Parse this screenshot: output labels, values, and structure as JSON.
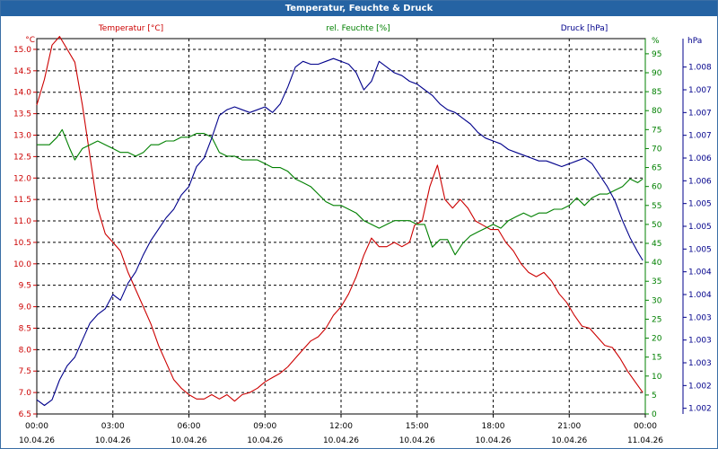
{
  "window": {
    "title": "Temperatur, Feuchte & Druck"
  },
  "chart_data": {
    "type": "line",
    "title": "Temperatur, Feuchte & Druck",
    "x_labels": [
      {
        "time": "00:00",
        "date": "10.04.26"
      },
      {
        "time": "03:00",
        "date": "10.04.26"
      },
      {
        "time": "06:00",
        "date": "10.04.26"
      },
      {
        "time": "09:00",
        "date": "10.04.26"
      },
      {
        "time": "12:00",
        "date": "10.04.26"
      },
      {
        "time": "15:00",
        "date": "10.04.26"
      },
      {
        "time": "18:00",
        "date": "10.04.26"
      },
      {
        "time": "21:00",
        "date": "10.04.26"
      },
      {
        "time": "00:00",
        "date": "11.04.26"
      }
    ],
    "xlim": [
      0,
      24
    ],
    "axes": {
      "temperature": {
        "label": "Temperatur [°C]",
        "unit": "°C",
        "color": "#cc0000",
        "ylim": [
          6.5,
          15.25
        ],
        "ticks": [
          "6.5",
          "7.0",
          "7.5",
          "8.0",
          "8.5",
          "9.0",
          "9.5",
          "10.0",
          "10.5",
          "11.0",
          "11.5",
          "12.0",
          "12.5",
          "13.0",
          "13.5",
          "14.0",
          "14.5",
          "15.0"
        ]
      },
      "humidity": {
        "label": "rel. Feuchte [%]",
        "unit": "%",
        "color": "#008000",
        "ylim": [
          0,
          99
        ],
        "ticks": [
          "0",
          "5",
          "10",
          "15",
          "20",
          "25",
          "30",
          "35",
          "40",
          "45",
          "50",
          "55",
          "60",
          "65",
          "70",
          "75",
          "80",
          "85",
          "90",
          "95"
        ]
      },
      "pressure": {
        "label": "Druck [hPa]",
        "unit": "hPa",
        "color": "#00008b",
        "ylim": [
          1001.6,
          1008.2
        ],
        "ticks": [
          {
            "v": 1001.7,
            "label": "1.002"
          },
          {
            "v": 1002.1,
            "label": "1.002"
          },
          {
            "v": 1002.5,
            "label": "1.003"
          },
          {
            "v": 1002.9,
            "label": "1.003"
          },
          {
            "v": 1003.3,
            "label": "1.003"
          },
          {
            "v": 1003.7,
            "label": "1.004"
          },
          {
            "v": 1004.1,
            "label": "1.004"
          },
          {
            "v": 1004.5,
            "label": "1.005"
          },
          {
            "v": 1004.9,
            "label": "1.005"
          },
          {
            "v": 1005.3,
            "label": "1.005"
          },
          {
            "v": 1005.7,
            "label": "1.006"
          },
          {
            "v": 1006.1,
            "label": "1.006"
          },
          {
            "v": 1006.5,
            "label": "1.007"
          },
          {
            "v": 1006.9,
            "label": "1.007"
          },
          {
            "v": 1007.3,
            "label": "1.007"
          },
          {
            "v": 1007.7,
            "label": "1.008"
          }
        ]
      }
    },
    "series": [
      {
        "name": "Temperatur [°C]",
        "axis": "temperature",
        "color": "#cc0000",
        "points": [
          [
            0,
            13.7
          ],
          [
            0.3,
            14.3
          ],
          [
            0.6,
            15.1
          ],
          [
            0.9,
            15.3
          ],
          [
            1.2,
            15.0
          ],
          [
            1.5,
            14.7
          ],
          [
            1.8,
            13.7
          ],
          [
            2.1,
            12.5
          ],
          [
            2.4,
            11.3
          ],
          [
            2.7,
            10.7
          ],
          [
            3.0,
            10.5
          ],
          [
            3.3,
            10.3
          ],
          [
            3.6,
            9.8
          ],
          [
            3.9,
            9.4
          ],
          [
            4.2,
            9.0
          ],
          [
            4.5,
            8.6
          ],
          [
            4.8,
            8.1
          ],
          [
            5.1,
            7.7
          ],
          [
            5.4,
            7.3
          ],
          [
            5.7,
            7.1
          ],
          [
            6.0,
            6.95
          ],
          [
            6.3,
            6.85
          ],
          [
            6.6,
            6.85
          ],
          [
            6.9,
            6.95
          ],
          [
            7.2,
            6.85
          ],
          [
            7.5,
            6.95
          ],
          [
            7.8,
            6.8
          ],
          [
            8.1,
            6.95
          ],
          [
            8.4,
            7.0
          ],
          [
            8.7,
            7.1
          ],
          [
            9.0,
            7.25
          ],
          [
            9.3,
            7.35
          ],
          [
            9.6,
            7.45
          ],
          [
            9.9,
            7.6
          ],
          [
            10.2,
            7.8
          ],
          [
            10.5,
            8.0
          ],
          [
            10.8,
            8.2
          ],
          [
            11.1,
            8.3
          ],
          [
            11.4,
            8.5
          ],
          [
            11.7,
            8.8
          ],
          [
            12.0,
            9.0
          ],
          [
            12.3,
            9.3
          ],
          [
            12.6,
            9.7
          ],
          [
            12.9,
            10.2
          ],
          [
            13.2,
            10.6
          ],
          [
            13.5,
            10.4
          ],
          [
            13.8,
            10.4
          ],
          [
            14.1,
            10.5
          ],
          [
            14.4,
            10.4
          ],
          [
            14.7,
            10.5
          ],
          [
            14.9,
            10.9
          ],
          [
            15.2,
            11.0
          ],
          [
            15.5,
            11.8
          ],
          [
            15.8,
            12.3
          ],
          [
            16.1,
            11.5
          ],
          [
            16.4,
            11.3
          ],
          [
            16.7,
            11.5
          ],
          [
            17.0,
            11.3
          ],
          [
            17.3,
            11.0
          ],
          [
            17.6,
            10.9
          ],
          [
            17.9,
            10.8
          ],
          [
            18.2,
            10.8
          ],
          [
            18.5,
            10.5
          ],
          [
            18.8,
            10.3
          ],
          [
            19.1,
            10.0
          ],
          [
            19.4,
            9.8
          ],
          [
            19.7,
            9.7
          ],
          [
            20.0,
            9.8
          ],
          [
            20.3,
            9.6
          ],
          [
            20.6,
            9.3
          ],
          [
            20.9,
            9.1
          ],
          [
            21.2,
            8.8
          ],
          [
            21.5,
            8.55
          ],
          [
            21.8,
            8.5
          ],
          [
            22.1,
            8.3
          ],
          [
            22.4,
            8.1
          ],
          [
            22.7,
            8.05
          ],
          [
            23.0,
            7.8
          ],
          [
            23.3,
            7.5
          ],
          [
            23.6,
            7.25
          ],
          [
            23.9,
            7.0
          ]
        ]
      },
      {
        "name": "rel. Feuchte [%]",
        "axis": "humidity",
        "color": "#008000",
        "points": [
          [
            0,
            71
          ],
          [
            0.5,
            71
          ],
          [
            0.8,
            73
          ],
          [
            1.0,
            75
          ],
          [
            1.3,
            70
          ],
          [
            1.5,
            67
          ],
          [
            1.8,
            70
          ],
          [
            2.1,
            71
          ],
          [
            2.4,
            72
          ],
          [
            2.7,
            71
          ],
          [
            3.0,
            70
          ],
          [
            3.3,
            69
          ],
          [
            3.6,
            69
          ],
          [
            3.9,
            68
          ],
          [
            4.2,
            69
          ],
          [
            4.5,
            71
          ],
          [
            4.8,
            71
          ],
          [
            5.1,
            72
          ],
          [
            5.4,
            72
          ],
          [
            5.7,
            73
          ],
          [
            6.0,
            73
          ],
          [
            6.3,
            74
          ],
          [
            6.6,
            74
          ],
          [
            6.9,
            73
          ],
          [
            7.2,
            69
          ],
          [
            7.5,
            68
          ],
          [
            7.8,
            68
          ],
          [
            8.1,
            67
          ],
          [
            8.4,
            67
          ],
          [
            8.7,
            67
          ],
          [
            9.0,
            66
          ],
          [
            9.3,
            65
          ],
          [
            9.6,
            65
          ],
          [
            9.9,
            64
          ],
          [
            10.2,
            62
          ],
          [
            10.5,
            61
          ],
          [
            10.8,
            60
          ],
          [
            11.1,
            58
          ],
          [
            11.4,
            56
          ],
          [
            11.7,
            55
          ],
          [
            12.0,
            55
          ],
          [
            12.3,
            54
          ],
          [
            12.6,
            53
          ],
          [
            12.9,
            51
          ],
          [
            13.2,
            50
          ],
          [
            13.5,
            49
          ],
          [
            13.8,
            50
          ],
          [
            14.1,
            51
          ],
          [
            14.4,
            51
          ],
          [
            14.7,
            51
          ],
          [
            15.0,
            50
          ],
          [
            15.3,
            50
          ],
          [
            15.6,
            44
          ],
          [
            15.9,
            46
          ],
          [
            16.2,
            46
          ],
          [
            16.5,
            42
          ],
          [
            16.8,
            45
          ],
          [
            17.1,
            47
          ],
          [
            17.4,
            48
          ],
          [
            17.7,
            49
          ],
          [
            18.0,
            50
          ],
          [
            18.3,
            49
          ],
          [
            18.6,
            51
          ],
          [
            18.9,
            52
          ],
          [
            19.2,
            53
          ],
          [
            19.5,
            52
          ],
          [
            19.8,
            53
          ],
          [
            20.1,
            53
          ],
          [
            20.4,
            54
          ],
          [
            20.7,
            54
          ],
          [
            21.0,
            55
          ],
          [
            21.3,
            57
          ],
          [
            21.6,
            55
          ],
          [
            21.9,
            57
          ],
          [
            22.2,
            58
          ],
          [
            22.5,
            58
          ],
          [
            22.8,
            59
          ],
          [
            23.1,
            60
          ],
          [
            23.4,
            62
          ],
          [
            23.7,
            61
          ],
          [
            23.9,
            62
          ]
        ]
      },
      {
        "name": "Druck [hPa]",
        "axis": "pressure",
        "color": "#00008b",
        "points": [
          [
            0,
            1001.85
          ],
          [
            0.3,
            1001.75
          ],
          [
            0.6,
            1001.85
          ],
          [
            0.9,
            1002.2
          ],
          [
            1.2,
            1002.45
          ],
          [
            1.5,
            1002.6
          ],
          [
            1.8,
            1002.9
          ],
          [
            2.1,
            1003.2
          ],
          [
            2.4,
            1003.35
          ],
          [
            2.7,
            1003.45
          ],
          [
            3.0,
            1003.7
          ],
          [
            3.3,
            1003.6
          ],
          [
            3.6,
            1003.9
          ],
          [
            3.9,
            1004.1
          ],
          [
            4.2,
            1004.4
          ],
          [
            4.5,
            1004.65
          ],
          [
            4.8,
            1004.85
          ],
          [
            5.1,
            1005.05
          ],
          [
            5.4,
            1005.2
          ],
          [
            5.7,
            1005.45
          ],
          [
            6.0,
            1005.6
          ],
          [
            6.3,
            1005.95
          ],
          [
            6.6,
            1006.1
          ],
          [
            6.9,
            1006.45
          ],
          [
            7.2,
            1006.85
          ],
          [
            7.5,
            1006.95
          ],
          [
            7.8,
            1007.0
          ],
          [
            8.1,
            1006.95
          ],
          [
            8.4,
            1006.9
          ],
          [
            8.7,
            1006.95
          ],
          [
            9.0,
            1007.0
          ],
          [
            9.3,
            1006.9
          ],
          [
            9.6,
            1007.05
          ],
          [
            9.9,
            1007.35
          ],
          [
            10.2,
            1007.7
          ],
          [
            10.5,
            1007.8
          ],
          [
            10.8,
            1007.75
          ],
          [
            11.1,
            1007.75
          ],
          [
            11.4,
            1007.8
          ],
          [
            11.7,
            1007.85
          ],
          [
            12.0,
            1007.8
          ],
          [
            12.3,
            1007.75
          ],
          [
            12.6,
            1007.6
          ],
          [
            12.9,
            1007.3
          ],
          [
            13.2,
            1007.45
          ],
          [
            13.5,
            1007.8
          ],
          [
            13.8,
            1007.7
          ],
          [
            14.1,
            1007.6
          ],
          [
            14.4,
            1007.55
          ],
          [
            14.7,
            1007.45
          ],
          [
            15.0,
            1007.4
          ],
          [
            15.3,
            1007.3
          ],
          [
            15.6,
            1007.2
          ],
          [
            15.9,
            1007.05
          ],
          [
            16.2,
            1006.95
          ],
          [
            16.5,
            1006.9
          ],
          [
            16.8,
            1006.8
          ],
          [
            17.1,
            1006.7
          ],
          [
            17.4,
            1006.55
          ],
          [
            17.7,
            1006.45
          ],
          [
            18.0,
            1006.4
          ],
          [
            18.3,
            1006.35
          ],
          [
            18.6,
            1006.25
          ],
          [
            18.9,
            1006.2
          ],
          [
            19.2,
            1006.15
          ],
          [
            19.5,
            1006.1
          ],
          [
            19.8,
            1006.05
          ],
          [
            20.1,
            1006.05
          ],
          [
            20.4,
            1006.0
          ],
          [
            20.7,
            1005.95
          ],
          [
            21.0,
            1006.0
          ],
          [
            21.3,
            1006.05
          ],
          [
            21.6,
            1006.1
          ],
          [
            21.9,
            1006.0
          ],
          [
            22.2,
            1005.8
          ],
          [
            22.5,
            1005.6
          ],
          [
            22.8,
            1005.35
          ],
          [
            23.1,
            1005.0
          ],
          [
            23.4,
            1004.7
          ],
          [
            23.7,
            1004.45
          ],
          [
            23.9,
            1004.3
          ]
        ]
      }
    ],
    "grid": true
  }
}
